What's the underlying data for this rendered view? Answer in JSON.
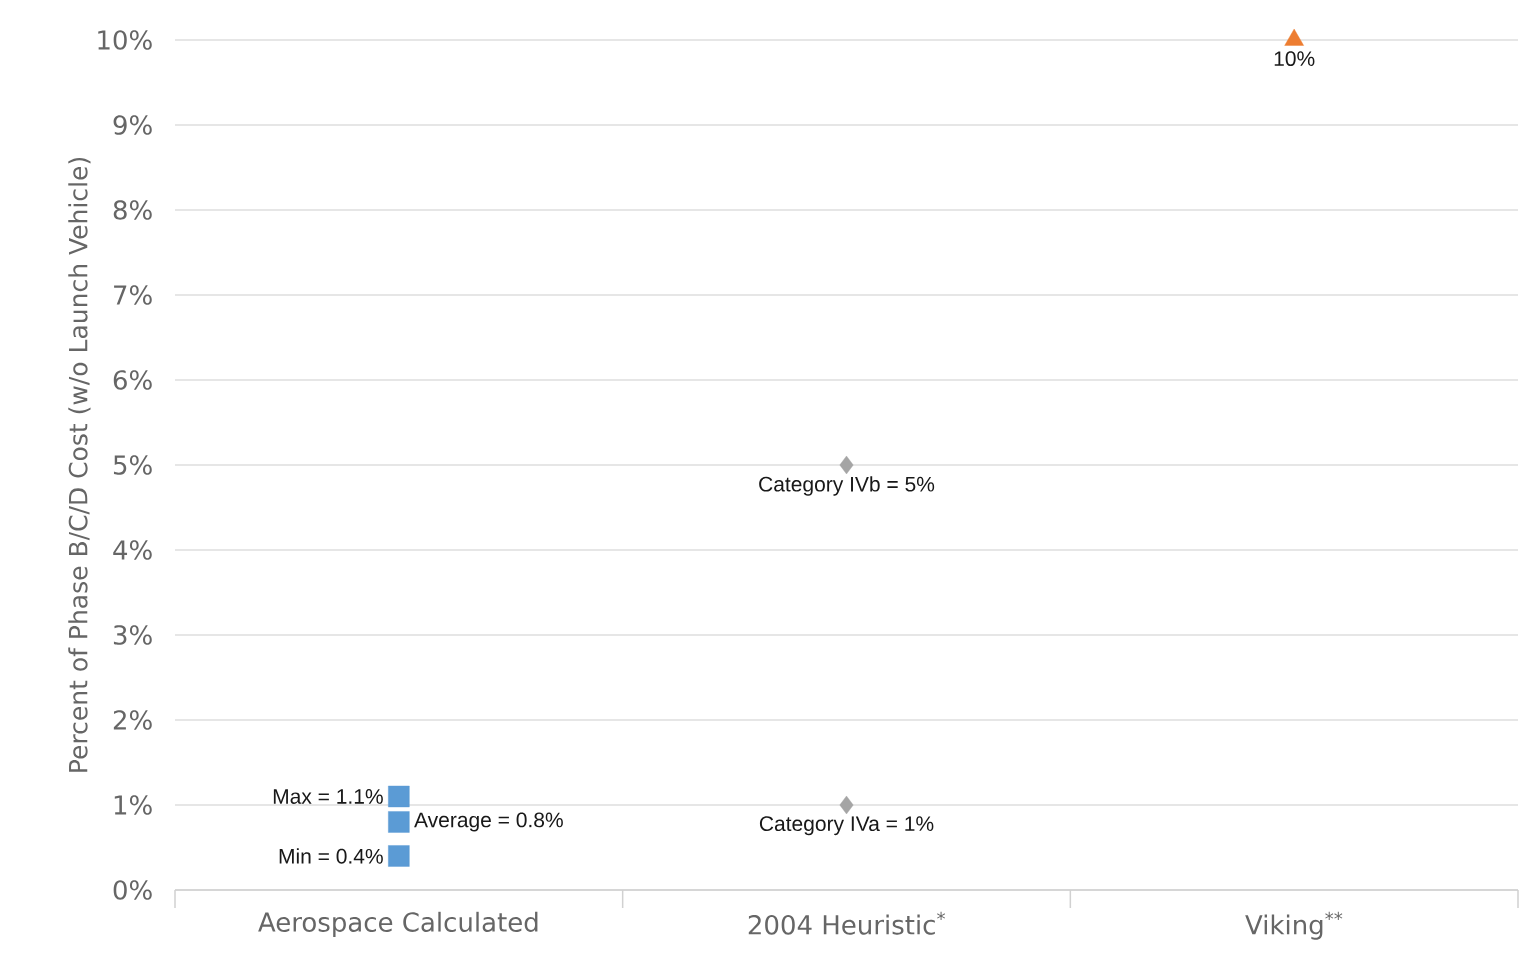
{
  "chart_data": {
    "type": "scatter",
    "ylabel": "Percent of Phase B/C/D Cost (w/o Launch Vehicle)",
    "categories": [
      "Aerospace Calculated",
      "2004 Heuristic$^{*}$",
      "Viking$^{**}$"
    ],
    "series": [
      {
        "type": "scatter",
        "marker": "square",
        "color": "#5b9bd5",
        "values": [
          1.1,
          null,
          null
        ],
        "value_labels": [
          "Max = 1.1%",
          null,
          null
        ]
      },
      {
        "type": "scatter",
        "marker": "square",
        "color": "#5b9bd5",
        "values": [
          0.8,
          null,
          null
        ],
        "value_labels": [
          "Average = 0.8%",
          null,
          null
        ]
      },
      {
        "type": "scatter",
        "marker": "square",
        "color": "#5b9bd5",
        "values": [
          0.4,
          null,
          null
        ],
        "value_labels": [
          "Min = 0.4%",
          null,
          null
        ]
      },
      {
        "type": "scatter",
        "marker": "diamond",
        "color": "#a5a5a5",
        "values": [
          null,
          5,
          null
        ],
        "value_labels": [
          null,
          "Category IVb = 5%",
          null
        ]
      },
      {
        "type": "scatter",
        "marker": "diamond",
        "color": "#a5a5a5",
        "values": [
          null,
          1,
          null
        ],
        "value_labels": [
          null,
          "Category IVa = 1%",
          null
        ]
      },
      {
        "type": "scatter",
        "marker": "triangle",
        "color": "#ed7d31",
        "values": [
          null,
          null,
          10
        ],
        "value_labels": [
          null,
          null,
          "10%"
        ]
      }
    ],
    "ylim": [
      0,
      10
    ],
    "yticks": [
      {
        "value": 0,
        "label": "0%"
      },
      {
        "value": 1,
        "label": "1%"
      },
      {
        "value": 2,
        "label": "2%"
      },
      {
        "value": 3,
        "label": "3%"
      },
      {
        "value": 4,
        "label": "4%"
      },
      {
        "value": 5,
        "label": "5%"
      },
      {
        "value": 6,
        "label": "6%"
      },
      {
        "value": 7,
        "label": "7%"
      },
      {
        "value": 8,
        "label": "8%"
      },
      {
        "value": 9,
        "label": "9%"
      },
      {
        "value": 10,
        "label": "10%"
      }
    ],
    "grid": "y"
  }
}
